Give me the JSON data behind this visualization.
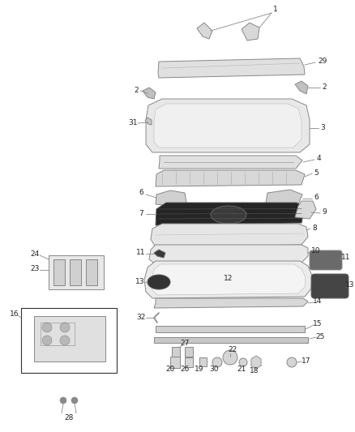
{
  "bg_color": "#ffffff",
  "fig_width": 4.38,
  "fig_height": 5.33,
  "dpi": 100,
  "lc": "#888888",
  "lw": 0.7,
  "fs": 6.5,
  "fc": "#222222"
}
